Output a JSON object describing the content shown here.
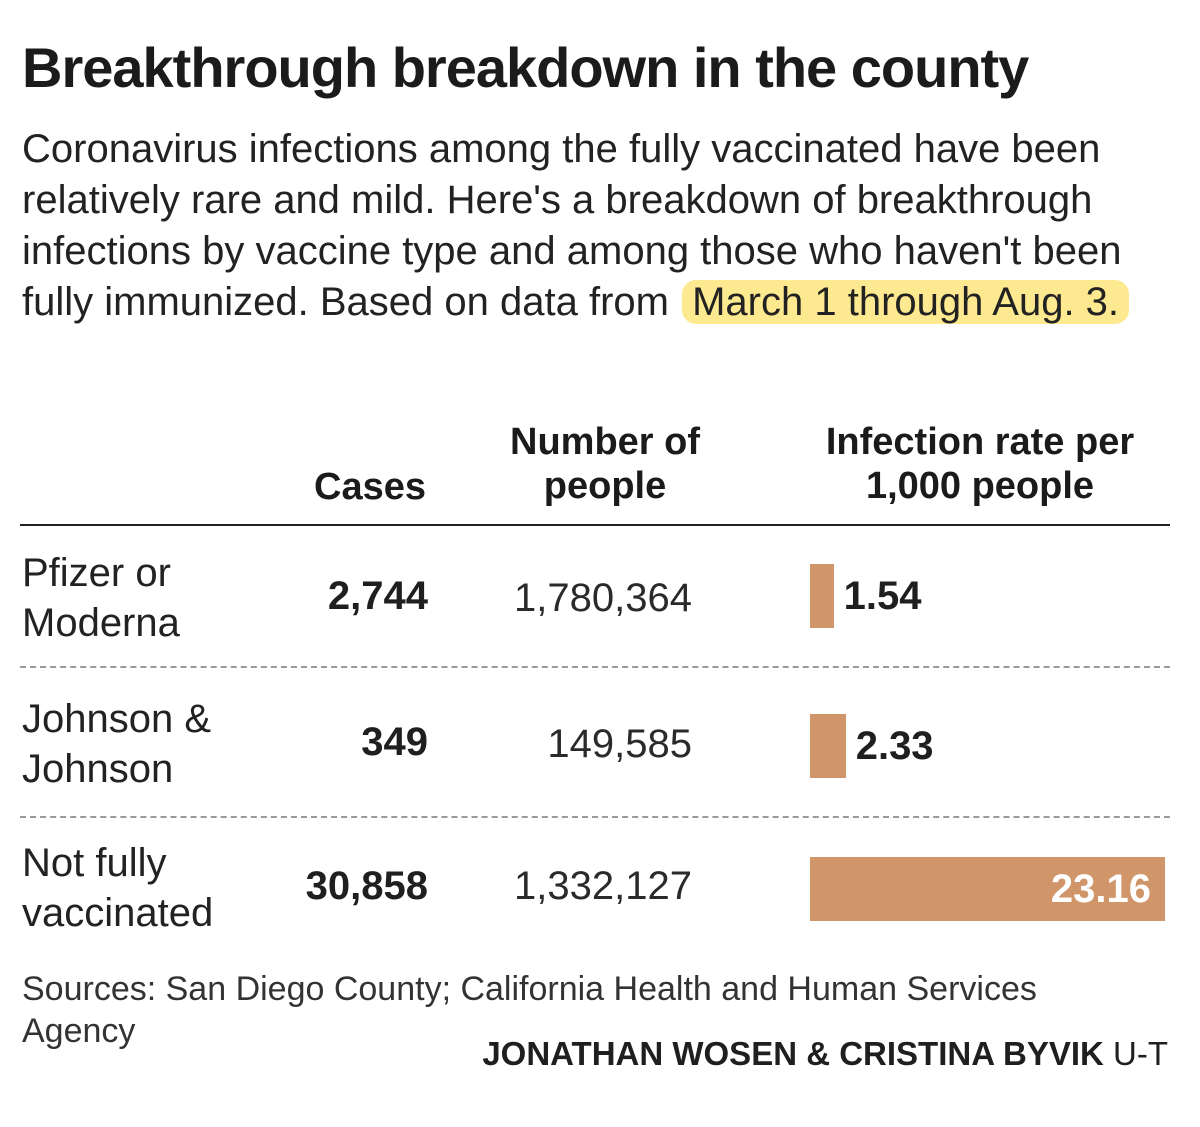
{
  "title": "Breakthrough breakdown in the county",
  "intro": {
    "text": "Coronavirus infections among the fully vaccinated have been relatively rare and mild. Here's a breakdown of breakthrough infections by vaccine type and among those who haven't been fully immunized. Based on data from",
    "highlight": "March 1 through Aug. 3.",
    "highlight_color": "#fde98f"
  },
  "headers": {
    "cases": "Cases",
    "people_line1": "Number of",
    "people_line2": "people",
    "rate_line1": "Infection rate per",
    "rate_line2": "1,000 people"
  },
  "rows": [
    {
      "label_line1": "Pfizer or",
      "label_line2": "Moderna",
      "cases": "2,744",
      "people": "1,780,364",
      "rate": "1.54"
    },
    {
      "label_line1": "Johnson &",
      "label_line2": "Johnson",
      "cases": "349",
      "people": "149,585",
      "rate": "2.33"
    },
    {
      "label_line1": "Not fully",
      "label_line2": "vaccinated",
      "cases": "30,858",
      "people": "1,332,127",
      "rate": "23.16"
    }
  ],
  "bar_color": "#d1956a",
  "chart_data": {
    "type": "bar",
    "orientation": "horizontal",
    "title": "Breakthrough breakdown in the county",
    "categories": [
      "Pfizer or Moderna",
      "Johnson & Johnson",
      "Not fully vaccinated"
    ],
    "series": [
      {
        "name": "Infection rate per 1,000 people",
        "values": [
          1.54,
          2.33,
          23.16
        ]
      }
    ],
    "table": {
      "columns": [
        "",
        "Cases",
        "Number of people",
        "Infection rate per 1,000 people"
      ],
      "rows": [
        [
          "Pfizer or Moderna",
          2744,
          1780364,
          1.54
        ],
        [
          "Johnson & Johnson",
          349,
          149585,
          2.33
        ],
        [
          "Not fully vaccinated",
          30858,
          1332127,
          23.16
        ]
      ]
    },
    "xlim": [
      0,
      23.16
    ],
    "grid": false
  },
  "source": "Sources: San Diego County; California Health and Human Services Agency",
  "credit": {
    "names": "JONATHAN WOSEN & CRISTINA BYVIK",
    "outlet": "U-T"
  }
}
